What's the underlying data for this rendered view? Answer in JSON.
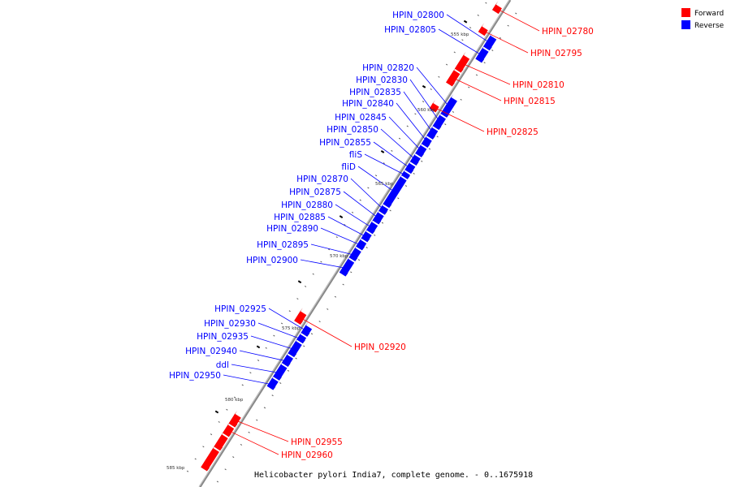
{
  "title": "Helicobacter pylori India7, complete genome. - 0..1675918",
  "legend": [
    {
      "label": "Forward",
      "color": "#ff0000"
    },
    {
      "label": "Reverse",
      "color": "#0000ff"
    }
  ],
  "colors": {
    "forward": "#ff0000",
    "reverse": "#0000ff",
    "backbone": "#888888",
    "ticks": "#000000"
  },
  "scale_labels": [
    "555 kbp",
    "560 kbp",
    "565 kbp",
    "570 kbp",
    "575 kbp",
    "580 kbp",
    "585 kbp"
  ],
  "genes_reverse": [
    "HPIN_02800",
    "HPIN_02805",
    "HPIN_02820",
    "HPIN_02830",
    "HPIN_02835",
    "HPIN_02840",
    "HPIN_02845",
    "HPIN_02850",
    "HPIN_02855",
    "fliS",
    "fliD",
    "HPIN_02870",
    "HPIN_02875",
    "HPIN_02880",
    "HPIN_02885",
    "HPIN_02890",
    "HPIN_02895",
    "HPIN_02900",
    "HPIN_02925",
    "HPIN_02930",
    "HPIN_02935",
    "HPIN_02940",
    "ddl",
    "HPIN_02950"
  ],
  "genes_forward": [
    "HPIN_02780",
    "HPIN_02795",
    "HPIN_02810",
    "HPIN_02815",
    "HPIN_02825",
    "HPIN_02920",
    "HPIN_02955",
    "HPIN_02960"
  ]
}
